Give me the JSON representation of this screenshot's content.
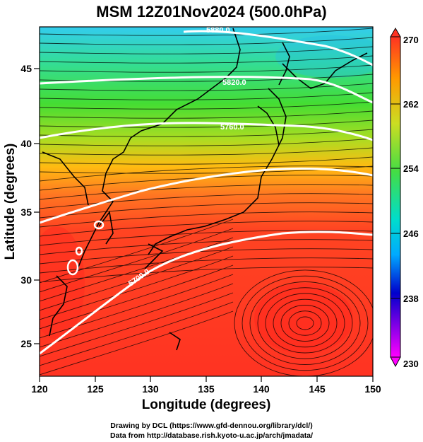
{
  "title": "MSM 12Z01Nov2024 (500.0hPa)",
  "x_axis": {
    "label": "Longitude (degrees)",
    "ticks": [
      "120",
      "125",
      "130",
      "135",
      "140",
      "145",
      "150"
    ]
  },
  "y_axis": {
    "label": "Latitude  (degrees)",
    "ticks": [
      "45",
      "40",
      "35",
      "30",
      "25"
    ]
  },
  "colorbar": {
    "ticks": [
      "270",
      "262",
      "254",
      "246",
      "238",
      "230"
    ],
    "colors": [
      "#ff00ff",
      "#0000cc",
      "#00aaff",
      "#00ddcc",
      "#44dd44",
      "#ccdd22",
      "#ff9900",
      "#ff3322"
    ]
  },
  "contour_labels": [
    "5880.0",
    "5820.0",
    "5760.0",
    "5700.0",
    "5640.0"
  ],
  "credits": {
    "line1": "Drawing by DCL (https://www.gfd-dennou.org/library/dcl/)",
    "line2": "Data from http://database.rish.kyoto-u.ac.jp/arch/jmadata/"
  }
}
